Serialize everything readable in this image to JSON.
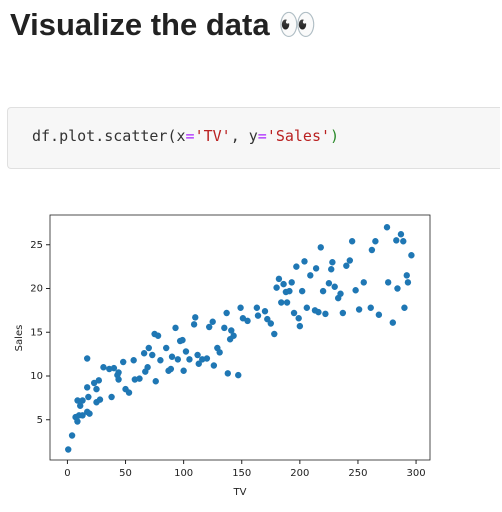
{
  "header": {
    "title": "Visualize the data 👀"
  },
  "code": {
    "tokens": [
      "df.plot.scatter(",
      "x",
      "=",
      "'TV'",
      ", ",
      "y",
      "=",
      "'Sales'",
      ")"
    ]
  },
  "chart_data": {
    "type": "scatter",
    "xlabel": "TV",
    "ylabel": "Sales",
    "color": "#1f77b4",
    "xlim": [
      -15,
      312
    ],
    "ylim": [
      0.4,
      28.4
    ],
    "xticks": [
      0,
      50,
      100,
      150,
      200,
      250,
      300
    ],
    "yticks": [
      5,
      10,
      15,
      20,
      25
    ],
    "x": [
      0.7,
      4,
      7,
      8.6,
      8.7,
      10,
      11,
      13,
      13,
      17,
      17,
      18,
      19,
      17,
      23,
      25,
      25,
      27,
      28,
      31,
      36,
      38,
      40,
      44,
      44,
      43,
      48,
      50,
      53,
      57,
      58,
      62,
      66,
      67,
      69,
      70,
      73,
      75,
      76,
      78,
      80,
      85,
      87,
      89,
      90,
      93,
      95,
      97,
      99,
      100,
      102,
      105,
      109,
      110,
      112,
      113,
      116,
      120,
      122,
      125,
      126,
      129,
      131,
      135,
      137,
      138,
      140,
      141,
      143,
      147,
      149,
      151,
      155,
      163,
      164,
      170,
      172,
      175,
      178,
      182,
      184,
      186,
      188,
      189,
      193,
      195,
      197,
      199,
      200,
      202,
      204,
      206,
      209,
      213,
      216,
      218,
      220,
      222,
      225,
      228,
      230,
      233,
      235,
      237,
      240,
      243,
      245,
      248,
      251,
      255,
      262,
      265,
      268,
      275,
      276,
      280,
      283,
      284,
      287,
      289,
      290,
      292,
      293,
      296,
      214,
      180,
      227,
      191,
      261
    ],
    "y": [
      1.6,
      3.2,
      5.3,
      4.8,
      7.2,
      5.5,
      6.6,
      5.5,
      7.2,
      5.9,
      8.7,
      7.6,
      5.7,
      12,
      9.2,
      7,
      8.5,
      9.5,
      7.3,
      11,
      10.8,
      7.6,
      10.9,
      10.4,
      9.6,
      10.1,
      11.6,
      8.5,
      8.1,
      11.8,
      9.6,
      9.7,
      12.6,
      10.5,
      11,
      13.2,
      12.4,
      14.8,
      9.4,
      14.6,
      11.8,
      13.2,
      10.6,
      10.8,
      12.2,
      15.5,
      11.9,
      14,
      14.1,
      10.6,
      12.8,
      11.9,
      15.9,
      16.7,
      12.4,
      11.4,
      11.9,
      12,
      15.6,
      16.2,
      11.2,
      13.2,
      12.7,
      15.5,
      17.2,
      10.3,
      14.2,
      15.2,
      14.6,
      10.1,
      17.8,
      16.6,
      16.3,
      17.8,
      16.9,
      17.4,
      16.5,
      16,
      14.8,
      21.1,
      18.4,
      20.5,
      19.6,
      18.4,
      20.7,
      17.2,
      22.5,
      16.6,
      15.7,
      19.7,
      23.1,
      17.8,
      21.5,
      17.5,
      17.3,
      24.7,
      19.7,
      17.1,
      20.6,
      23,
      20.2,
      18.9,
      19.4,
      17.2,
      22.6,
      23.2,
      25.4,
      19.8,
      17.6,
      20.7,
      24.4,
      25.4,
      17,
      27,
      20.7,
      16.1,
      25.5,
      20,
      26.2,
      25.4,
      17.8,
      21.5,
      20.7,
      23.8,
      22.3,
      20.1,
      22.2,
      19.7,
      17.8
    ]
  }
}
